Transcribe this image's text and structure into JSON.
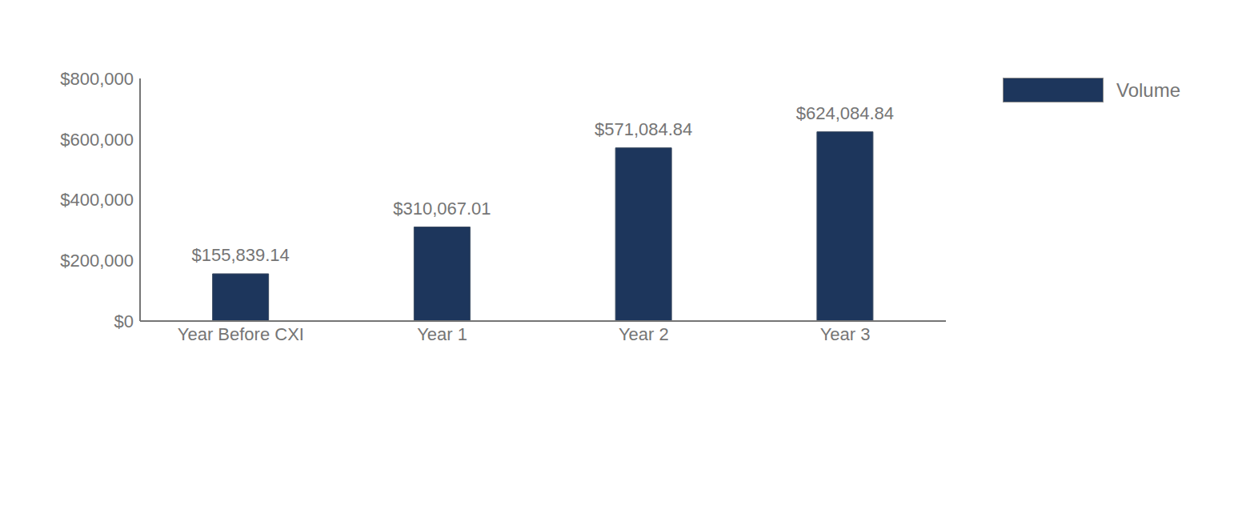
{
  "chart_data": {
    "type": "bar",
    "categories": [
      "Year Before CXI",
      "Year 1",
      "Year 2",
      "Year 3"
    ],
    "series": [
      {
        "name": "Volume",
        "color": "#1d365c",
        "values": [
          155839.14,
          310067.01,
          571084.84,
          624084.84
        ],
        "value_labels": [
          "$155,839.14",
          "$310,067.01",
          "$571,084.84",
          "$624,084.84"
        ]
      }
    ],
    "ylim": [
      0,
      800000
    ],
    "yticks": [
      {
        "value": 0,
        "label": "$0"
      },
      {
        "value": 200000,
        "label": "$200,000"
      },
      {
        "value": 400000,
        "label": "$400,000"
      },
      {
        "value": 600000,
        "label": "$600,000"
      },
      {
        "value": 800000,
        "label": "$800,000"
      }
    ],
    "grid": false,
    "legend": "top-right",
    "data_labels": true
  }
}
